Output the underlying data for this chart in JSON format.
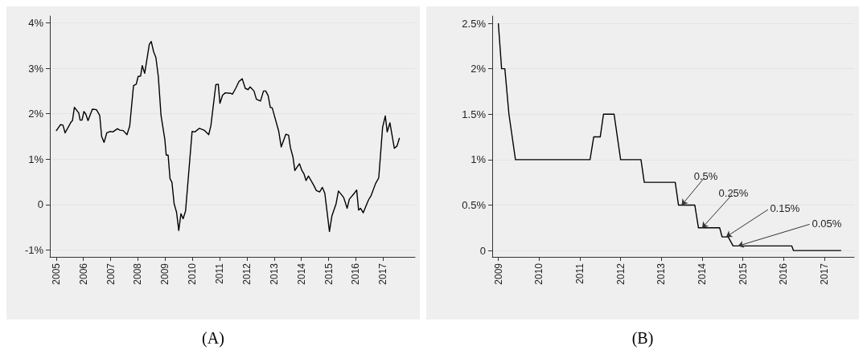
{
  "chart_data": [
    {
      "type": "line",
      "title": "(A)",
      "color": "#000000",
      "marker": "none",
      "grid": "y",
      "xlim": [
        2004.77,
        2018.17
      ],
      "xticks": [
        2005,
        2006,
        2007,
        2008,
        2009,
        2010,
        2011,
        2012,
        2013,
        2014,
        2015,
        2016,
        2017
      ],
      "ylim": [
        -1.15,
        4.15
      ],
      "yticks": [
        {
          "value": -1,
          "label": "-1%"
        },
        0,
        {
          "value": 1,
          "label": "1%"
        },
        {
          "value": 2,
          "label": "2%"
        },
        {
          "value": 3,
          "label": "3%"
        },
        {
          "value": 4,
          "label": "4%"
        }
      ],
      "x": [
        2005.0,
        2005.16,
        2005.25,
        2005.33,
        2005.55,
        2005.6,
        2005.67,
        2005.83,
        2005.88,
        2005.95,
        2006.02,
        2006.09,
        2006.17,
        2006.33,
        2006.48,
        2006.6,
        2006.67,
        2006.76,
        2006.86,
        2006.98,
        2007.08,
        2007.25,
        2007.34,
        2007.46,
        2007.6,
        2007.7,
        2007.84,
        2007.94,
        2008.01,
        2008.1,
        2008.16,
        2008.25,
        2008.42,
        2008.49,
        2008.58,
        2008.66,
        2008.75,
        2008.85,
        2008.99,
        2009.04,
        2009.11,
        2009.18,
        2009.25,
        2009.33,
        2009.42,
        2009.5,
        2009.58,
        2009.66,
        2009.75,
        2009.99,
        2010.09,
        2010.26,
        2010.33,
        2010.43,
        2010.6,
        2010.68,
        2010.86,
        2010.95,
        2011.01,
        2011.11,
        2011.21,
        2011.4,
        2011.47,
        2011.59,
        2011.71,
        2011.83,
        2011.94,
        2012.04,
        2012.12,
        2012.26,
        2012.35,
        2012.5,
        2012.61,
        2012.69,
        2012.78,
        2012.86,
        2012.93,
        2013.17,
        2013.26,
        2013.43,
        2013.53,
        2013.6,
        2013.69,
        2013.76,
        2013.93,
        2014.02,
        2014.1,
        2014.17,
        2014.26,
        2014.45,
        2014.55,
        2014.67,
        2014.77,
        2014.86,
        2015.03,
        2015.12,
        2015.27,
        2015.36,
        2015.55,
        2015.68,
        2015.76,
        2015.93,
        2016.03,
        2016.1,
        2016.17,
        2016.27,
        2016.46,
        2016.56,
        2016.72,
        2016.84,
        2016.98,
        2017.08,
        2017.15,
        2017.25,
        2017.41,
        2017.51,
        2017.6
      ],
      "values": [
        1.62,
        1.76,
        1.75,
        1.58,
        1.82,
        1.85,
        2.14,
        2.02,
        1.86,
        1.86,
        2.05,
        1.99,
        1.85,
        2.1,
        2.09,
        1.96,
        1.5,
        1.37,
        1.58,
        1.61,
        1.6,
        1.67,
        1.64,
        1.63,
        1.54,
        1.73,
        2.62,
        2.65,
        2.82,
        2.83,
        3.06,
        2.89,
        3.53,
        3.59,
        3.36,
        3.24,
        2.82,
        1.96,
        1.43,
        1.09,
        1.09,
        0.57,
        0.49,
        0.02,
        -0.17,
        -0.57,
        -0.2,
        -0.31,
        -0.14,
        1.61,
        1.6,
        1.68,
        1.66,
        1.64,
        1.54,
        1.74,
        2.64,
        2.65,
        2.23,
        2.41,
        2.46,
        2.45,
        2.43,
        2.56,
        2.71,
        2.77,
        2.56,
        2.53,
        2.59,
        2.5,
        2.32,
        2.28,
        2.5,
        2.5,
        2.4,
        2.14,
        2.13,
        1.61,
        1.27,
        1.55,
        1.53,
        1.25,
        1.05,
        0.75,
        0.9,
        0.75,
        0.67,
        0.53,
        0.63,
        0.43,
        0.31,
        0.28,
        0.38,
        0.25,
        -0.59,
        -0.25,
        0.01,
        0.3,
        0.16,
        -0.08,
        0.12,
        0.24,
        0.32,
        -0.12,
        -0.08,
        -0.18,
        0.1,
        0.2,
        0.46,
        0.59,
        1.7,
        1.95,
        1.6,
        1.8,
        1.24,
        1.29,
        1.47
      ]
    },
    {
      "type": "line",
      "title": "(B)",
      "color": "#000000",
      "marker": "none",
      "grid": "y",
      "xlim": [
        2008.85,
        2017.73
      ],
      "xticks": [
        2009,
        2010,
        2011,
        2012,
        2013,
        2014,
        2015,
        2016,
        2017
      ],
      "ylim": [
        -0.07,
        2.58
      ],
      "yticks": [
        0,
        {
          "value": 0.5,
          "label": "0.5%"
        },
        {
          "value": 1,
          "label": "1%"
        },
        {
          "value": 1.5,
          "label": "1.5%"
        },
        {
          "value": 2,
          "label": "2%"
        },
        {
          "value": 2.5,
          "label": "2.5%"
        }
      ],
      "x": [
        2009.0,
        2009.08,
        2009.16,
        2009.26,
        2009.42,
        2011.25,
        2011.34,
        2011.5,
        2011.58,
        2011.84,
        2012.0,
        2012.5,
        2012.58,
        2013.34,
        2013.42,
        2013.82,
        2013.91,
        2014.43,
        2014.49,
        2014.64,
        2014.76,
        2016.2,
        2016.24,
        2017.41
      ],
      "values": [
        2.5,
        2.0,
        2.0,
        1.5,
        1.0,
        1.0,
        1.25,
        1.25,
        1.5,
        1.5,
        1.0,
        1.0,
        0.75,
        0.75,
        0.5,
        0.5,
        0.25,
        0.25,
        0.15,
        0.15,
        0.05,
        0.05,
        0,
        0
      ],
      "annotations": [
        {
          "text": "0.5%",
          "x": 2013.5,
          "y": 0.5
        },
        {
          "text": "0.25%",
          "x": 2014.0,
          "y": 0.25
        },
        {
          "text": "0.15%",
          "x": 2014.59,
          "y": 0.15
        },
        {
          "text": "0.05%",
          "x": 2014.88,
          "y": 0.05
        }
      ]
    }
  ]
}
